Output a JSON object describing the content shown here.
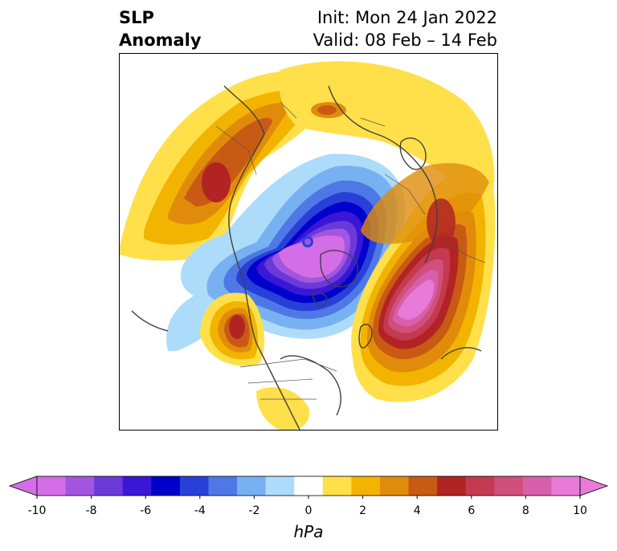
{
  "title": {
    "left_line1": "SLP",
    "left_line2": "Anomaly",
    "init": "Init: Mon 24 Jan 2022",
    "valid": "Valid: 08 Feb – 14 Feb"
  },
  "colorbar": {
    "unit": "hPa",
    "range": [
      -10,
      10
    ],
    "colors": [
      "#d46ee6",
      "#a256e0",
      "#6a3ad9",
      "#3a16d6",
      "#0000cc",
      "#2840d8",
      "#4d78e6",
      "#78b1f2",
      "#addcfa",
      "#ffffff",
      "#ffe04a",
      "#f2b400",
      "#e08c0a",
      "#c85a14",
      "#b22424",
      "#c43a50",
      "#d04f7c",
      "#d860aa",
      "#e87ad8"
    ],
    "tick_labels": [
      "-10",
      "-8",
      "-6",
      "-4",
      "-2",
      "0",
      "2",
      "4",
      "6",
      "8",
      "10"
    ]
  }
}
